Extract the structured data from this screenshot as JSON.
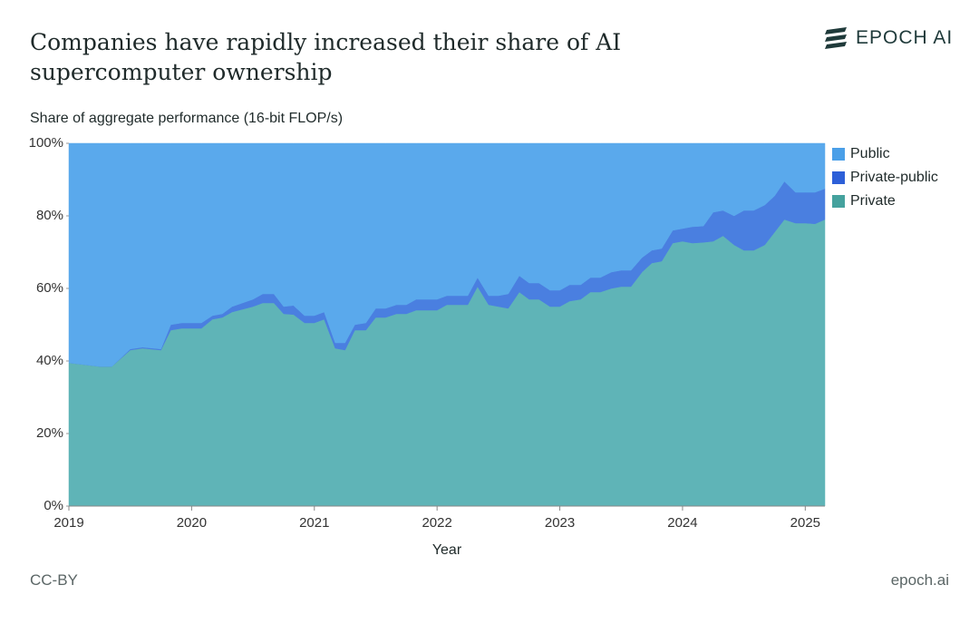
{
  "chart_data": {
    "type": "stacked_area",
    "title": "Companies have rapidly increased their share of AI supercomputer ownership",
    "brand": "EPOCH AI",
    "y_label": "Share of aggregate performance (16-bit FLOP/s)",
    "x_label": "Year",
    "license": "CC-BY",
    "source": "epoch.ai",
    "legend": "right",
    "x": [
      2019.0,
      2019.25,
      2019.35,
      2019.5,
      2019.6,
      2019.75,
      2019.83,
      2019.92,
      2020.08,
      2020.17,
      2020.25,
      2020.33,
      2020.5,
      2020.58,
      2020.67,
      2020.75,
      2020.83,
      2020.92,
      2021.0,
      2021.08,
      2021.17,
      2021.25,
      2021.33,
      2021.42,
      2021.5,
      2021.58,
      2021.67,
      2021.75,
      2021.83,
      2022.0,
      2022.08,
      2022.25,
      2022.33,
      2022.42,
      2022.5,
      2022.58,
      2022.67,
      2022.75,
      2022.83,
      2022.92,
      2023.0,
      2023.08,
      2023.17,
      2023.25,
      2023.33,
      2023.42,
      2023.5,
      2023.58,
      2023.67,
      2023.75,
      2023.83,
      2023.92,
      2024.0,
      2024.08,
      2024.17,
      2024.25,
      2024.33,
      2024.42,
      2024.5,
      2024.58,
      2024.67,
      2024.75,
      2024.83,
      2024.92,
      2025.0,
      2025.08,
      2025.16
    ],
    "series": [
      {
        "name": "Public",
        "color": "#5aa9ec",
        "legend_color": "#4a9fe8",
        "values": [
          60.5,
          61.5,
          61.5,
          56.7,
          56.2,
          56.7,
          50,
          49.5,
          49.5,
          47.5,
          47,
          45,
          43,
          41.5,
          41.5,
          45,
          44.7,
          47.5,
          47.5,
          46.5,
          55,
          55,
          50,
          49.5,
          45.5,
          45.5,
          44.5,
          44.5,
          43,
          43,
          42,
          42,
          37,
          42,
          42,
          41.5,
          36.5,
          38.5,
          38.5,
          40.5,
          40.5,
          39,
          39,
          37,
          37,
          35.5,
          35,
          35,
          31.5,
          29.5,
          29,
          24,
          23.5,
          23,
          22.8,
          19,
          18.5,
          20,
          18.5,
          18.5,
          17,
          14.5,
          10.5,
          13.5,
          13.5,
          13.5,
          12.5
        ]
      },
      {
        "name": "Private-public",
        "color": "#4a7fe0",
        "legend_color": "#2d5fd8",
        "values": [
          0,
          0,
          0,
          0.3,
          0.3,
          0.3,
          1.5,
          1.5,
          1.5,
          1,
          1,
          1.5,
          2,
          2.5,
          2.5,
          2,
          2.5,
          2,
          2,
          2,
          1.5,
          2,
          1.5,
          2,
          2.5,
          2.5,
          2.5,
          2.5,
          3,
          3,
          2.5,
          2.5,
          2.5,
          2.5,
          3,
          4,
          4.5,
          4.5,
          4.5,
          4.5,
          4.5,
          4.5,
          4,
          4,
          4,
          4.5,
          4.5,
          4.5,
          4,
          3.5,
          3.5,
          3.5,
          3.5,
          4.5,
          4.5,
          8,
          7,
          8,
          11,
          11,
          11,
          10,
          10.5,
          8.5,
          8.5,
          8.7,
          8.5
        ]
      },
      {
        "name": "Private",
        "color": "#5fb4b7",
        "legend_color": "#45a29e",
        "values": [
          39.5,
          38.5,
          38.5,
          43,
          43.5,
          43,
          48.5,
          49,
          49,
          51.5,
          52,
          53.5,
          55,
          56,
          56,
          53,
          52.8,
          50.5,
          50.5,
          51.5,
          43.5,
          43,
          48.5,
          48.5,
          52,
          52,
          53,
          53,
          54,
          54,
          55.5,
          55.5,
          60.5,
          55.5,
          55,
          54.5,
          59,
          57,
          57,
          55,
          55,
          56.5,
          57,
          59,
          59,
          60,
          60.5,
          60.5,
          64.5,
          67,
          67.5,
          72.5,
          73,
          72.5,
          72.7,
          73,
          74.5,
          72,
          70.5,
          70.5,
          72,
          75.5,
          79,
          78,
          78,
          77.8,
          79
        ]
      }
    ],
    "xlim": [
      2019,
      2025.16
    ],
    "xticks": [
      2019,
      2020,
      2021,
      2022,
      2023,
      2024,
      2025
    ],
    "ylim": [
      0,
      100
    ],
    "yticks": [
      {
        "value": 0,
        "label": "0%"
      },
      {
        "value": 20,
        "label": "20%"
      },
      {
        "value": 40,
        "label": "40%"
      },
      {
        "value": 60,
        "label": "60%"
      },
      {
        "value": 80,
        "label": "80%"
      },
      {
        "value": 100,
        "label": "100%"
      }
    ]
  }
}
